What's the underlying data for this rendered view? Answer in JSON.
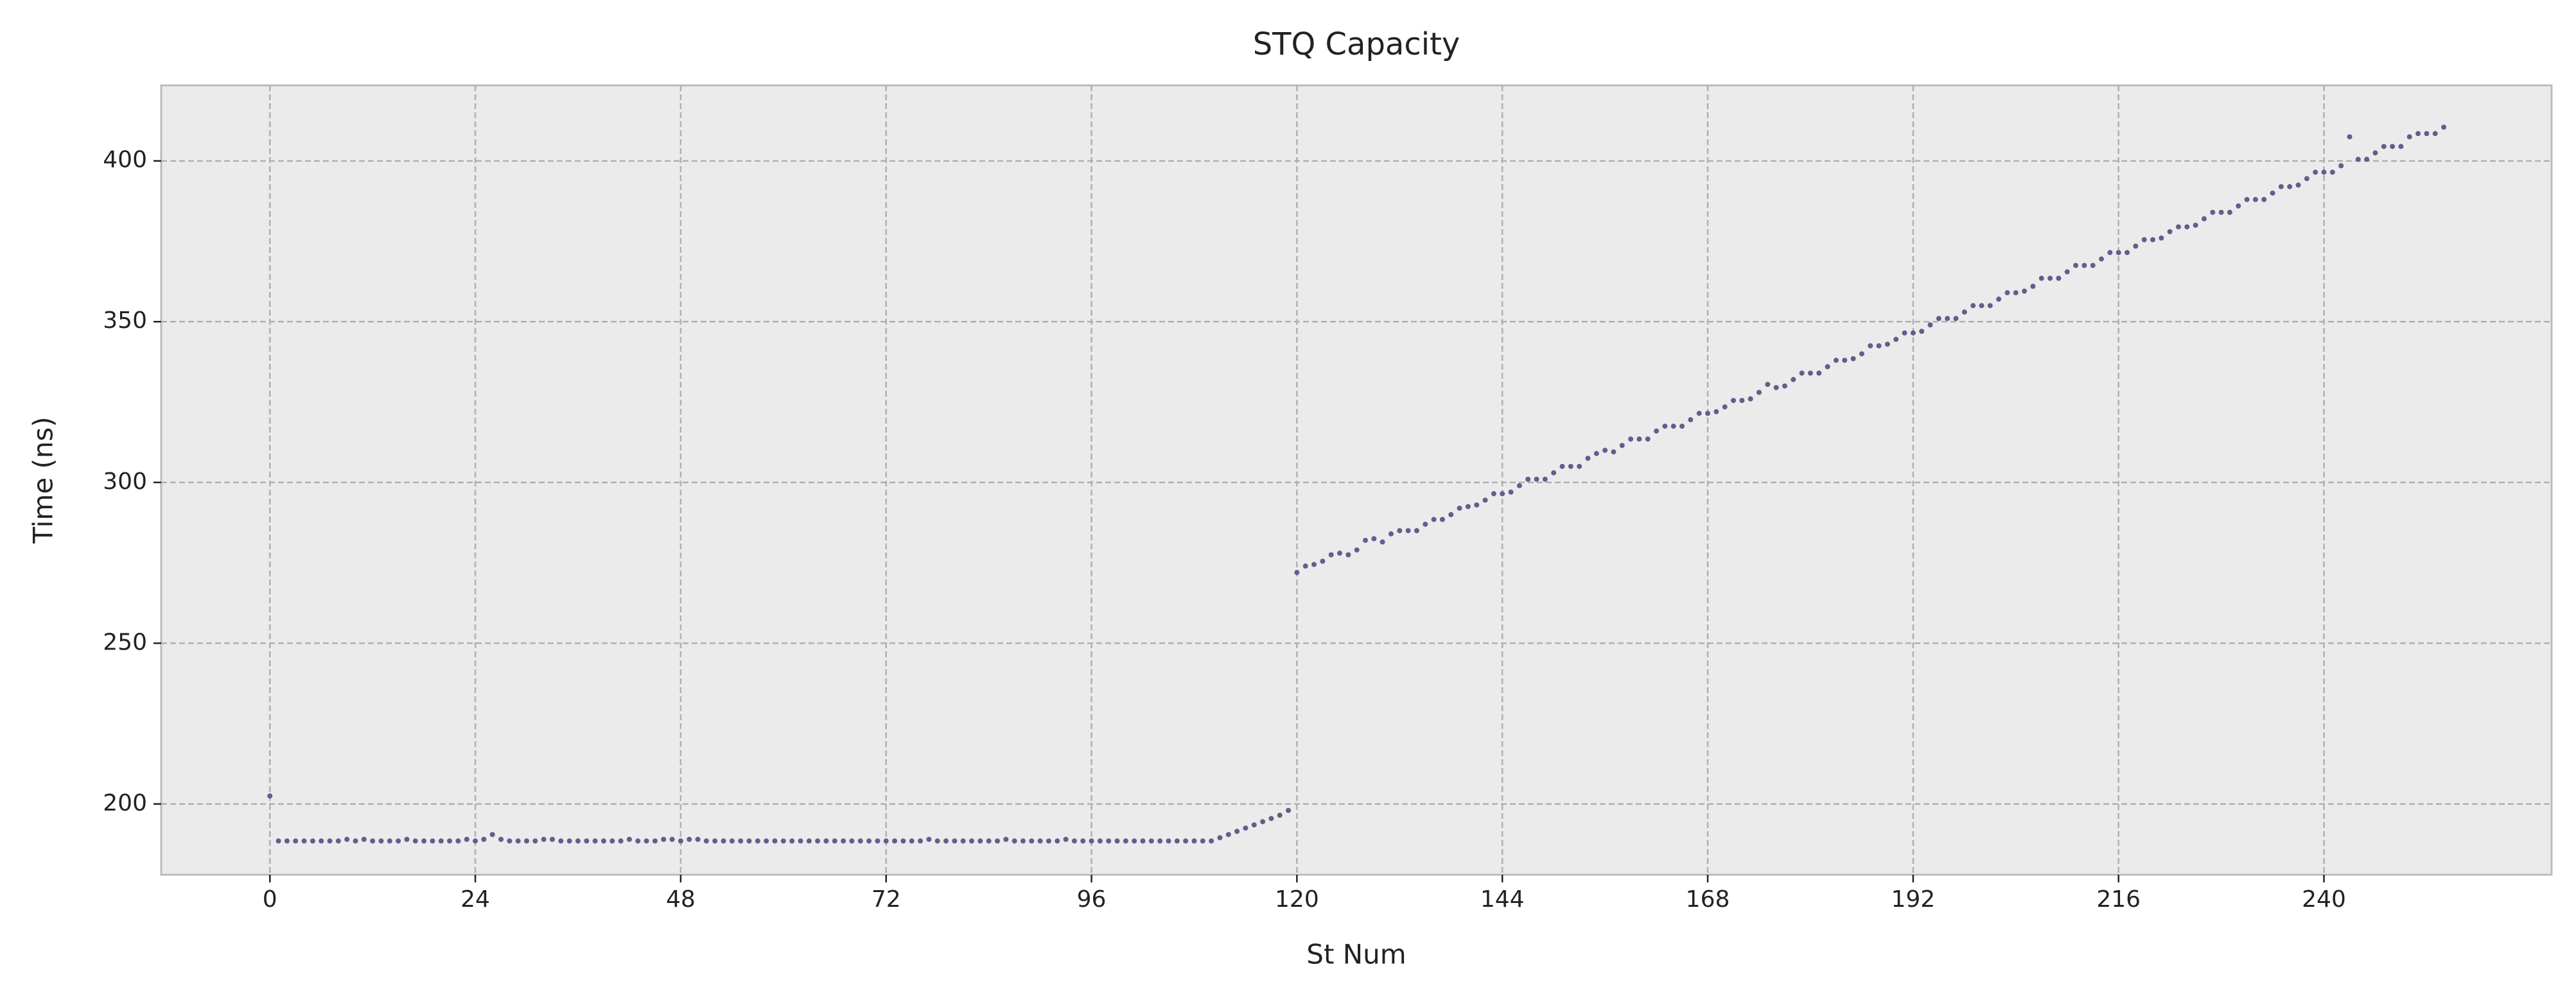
{
  "chart_data": {
    "type": "scatter",
    "title": "STQ Capacity",
    "x_label": "St Num",
    "y_label": "Time (ns)",
    "x": [
      0,
      1,
      2,
      3,
      4,
      5,
      6,
      7,
      8,
      9,
      10,
      11,
      12,
      13,
      14,
      15,
      16,
      17,
      18,
      19,
      20,
      21,
      22,
      23,
      24,
      25,
      26,
      27,
      28,
      29,
      30,
      31,
      32,
      33,
      34,
      35,
      36,
      37,
      38,
      39,
      40,
      41,
      42,
      43,
      44,
      45,
      46,
      47,
      48,
      49,
      50,
      51,
      52,
      53,
      54,
      55,
      56,
      57,
      58,
      59,
      60,
      61,
      62,
      63,
      64,
      65,
      66,
      67,
      68,
      69,
      70,
      71,
      72,
      73,
      74,
      75,
      76,
      77,
      78,
      79,
      80,
      81,
      82,
      83,
      84,
      85,
      86,
      87,
      88,
      89,
      90,
      91,
      92,
      93,
      94,
      95,
      96,
      97,
      98,
      99,
      100,
      101,
      102,
      103,
      104,
      105,
      106,
      107,
      108,
      109,
      110,
      111,
      112,
      113,
      114,
      115,
      116,
      117,
      118,
      119,
      120,
      121,
      122,
      123,
      124,
      125,
      126,
      127,
      128,
      129,
      130,
      131,
      132,
      133,
      134,
      135,
      136,
      137,
      138,
      139,
      140,
      141,
      142,
      143,
      144,
      145,
      146,
      147,
      148,
      149,
      150,
      151,
      152,
      153,
      154,
      155,
      156,
      157,
      158,
      159,
      160,
      161,
      162,
      163,
      164,
      165,
      166,
      167,
      168,
      169,
      170,
      171,
      172,
      173,
      174,
      175,
      176,
      177,
      178,
      179,
      180,
      181,
      182,
      183,
      184,
      185,
      186,
      187,
      188,
      189,
      190,
      191,
      192,
      193,
      194,
      195,
      196,
      197,
      198,
      199,
      200,
      201,
      202,
      203,
      204,
      205,
      206,
      207,
      208,
      209,
      210,
      211,
      212,
      213,
      214,
      215,
      216,
      217,
      218,
      219,
      220,
      221,
      222,
      223,
      224,
      225,
      226,
      227,
      228,
      229,
      230,
      231,
      232,
      233,
      234,
      235,
      236,
      237,
      238,
      239,
      240,
      241,
      242,
      243,
      244,
      245,
      246,
      247,
      248,
      249,
      250,
      251,
      252,
      253,
      254
    ],
    "series": [
      {
        "name": "Time",
        "color": "#6a5a8c",
        "values": [
          202.5,
          188.5,
          188.5,
          188.5,
          188.5,
          188.5,
          188.5,
          188.5,
          188.5,
          189,
          188.5,
          189,
          188.5,
          188.5,
          188.5,
          188.5,
          189,
          188.5,
          188.5,
          188.5,
          188.5,
          188.5,
          188.5,
          189,
          188.5,
          189,
          190.5,
          189,
          188.5,
          188.5,
          188.5,
          188.5,
          189,
          189,
          188.5,
          188.5,
          188.5,
          188.5,
          188.5,
          188.5,
          188.5,
          188.5,
          189,
          188.5,
          188.5,
          188.5,
          189,
          189,
          188.5,
          189,
          189,
          188.5,
          188.5,
          188.5,
          188.5,
          188.5,
          188.5,
          188.5,
          188.5,
          188.5,
          188.5,
          188.5,
          188.5,
          188.5,
          188.5,
          188.5,
          188.5,
          188.5,
          188.5,
          188.5,
          188.5,
          188.5,
          188.5,
          188.5,
          188.5,
          188.5,
          188.5,
          189,
          188.5,
          188.5,
          188.5,
          188.5,
          188.5,
          188.5,
          188.5,
          188.5,
          189,
          188.5,
          188.5,
          188.5,
          188.5,
          188.5,
          188.5,
          189,
          188.5,
          188.5,
          188.5,
          188.5,
          188.5,
          188.5,
          188.5,
          188.5,
          188.5,
          188.5,
          188.5,
          188.5,
          188.5,
          188.5,
          188.5,
          188.5,
          188.5,
          189.5,
          190.5,
          191.5,
          192.5,
          193.5,
          194.5,
          195.5,
          196.5,
          198,
          272,
          274,
          274.5,
          275.5,
          277.5,
          278,
          277.5,
          279,
          282,
          282.5,
          281.5,
          284,
          285,
          285,
          285,
          287,
          288.5,
          288.5,
          290,
          292,
          292.5,
          293,
          294.5,
          296.5,
          296.5,
          297,
          299,
          301,
          301,
          301,
          303,
          305,
          305,
          305,
          307.5,
          309,
          310,
          309.5,
          311.5,
          313.5,
          313.5,
          313.5,
          316,
          317.5,
          317.5,
          317.5,
          319.5,
          321.5,
          321.5,
          322,
          323.5,
          325.5,
          325.5,
          326,
          328,
          330.5,
          329.5,
          330,
          332,
          334,
          334,
          334,
          336,
          338,
          338,
          338.5,
          340,
          342.5,
          342.5,
          343,
          344.5,
          346.5,
          346.5,
          347,
          349,
          351,
          351,
          351,
          353,
          355,
          355,
          355,
          357,
          359,
          359,
          359.5,
          361,
          363.5,
          363.5,
          363.5,
          365.5,
          367.5,
          367.5,
          367.5,
          369.5,
          371.5,
          371.5,
          371.5,
          373.5,
          375.5,
          375.5,
          376,
          378,
          379.5,
          379.5,
          380,
          382,
          384,
          384,
          384,
          386,
          388,
          388,
          388,
          390,
          392,
          392,
          392.5,
          394.5,
          396.5,
          396.5,
          396.5,
          398.5,
          407.5,
          400.5,
          400.5,
          402.5,
          404.5,
          404.5,
          404.5,
          407.5,
          408.5,
          408.5,
          408.5,
          410.5
        ]
      }
    ],
    "xlim": [
      -12.7,
      266.6
    ],
    "ylim": [
      178,
      423.5
    ],
    "xticks": [
      0,
      24,
      48,
      72,
      96,
      120,
      144,
      168,
      192,
      216,
      240
    ],
    "yticks": [
      200,
      250,
      300,
      350,
      400
    ],
    "grid": true,
    "plot_background": "#ebebeb"
  }
}
